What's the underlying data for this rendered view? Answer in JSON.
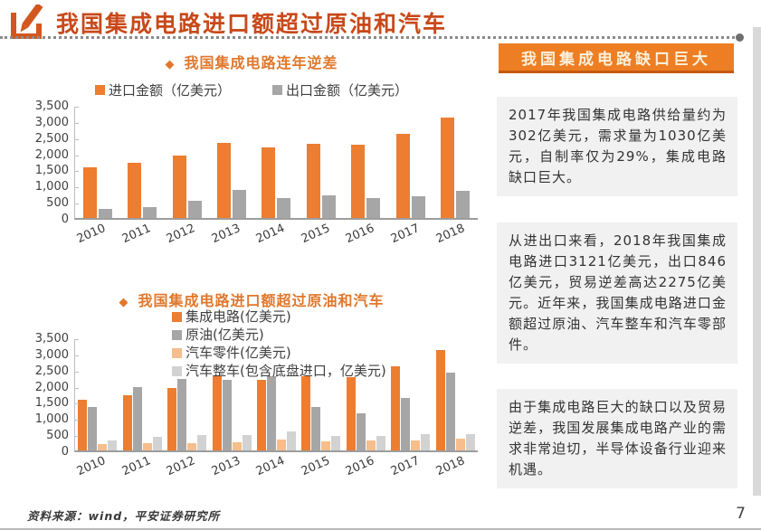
{
  "page": {
    "title": "我国集成电路进口额超过原油和汽车",
    "source_note": "资料来源：wind，平安证券研究所",
    "page_number": "7"
  },
  "icons": {
    "header_icon": "pencil-edit-icon",
    "chart_title_bullet": "◆"
  },
  "colors": {
    "title_red": "#c8491a",
    "chart_title_orange": "#e0782c",
    "panel_header_bg": "#ee7e23",
    "panel_header_text": "#fcf0dc",
    "panel_para_bg": "#f1f1f1",
    "bar_orange": "#ed7d31",
    "bar_gray": "#a6a6a6",
    "bar_peach": "#f5be8c",
    "bar_lightgray": "#d2d2d2"
  },
  "right_panel": {
    "header": "我国集成电路缺口巨大",
    "paragraphs": [
      "2017年我国集成电路供给量约为302亿美元，需求量为1030亿美元，自制率仅为29%，集成电路缺口巨大。",
      "从进出口来看，2018年我国集成电路进口3121亿美元，出口846亿美元，贸易逆差高达2275亿美元。近年来，我国集成电路进口金额超过原油、汽车整车和汽车零部件。",
      "由于集成电路巨大的缺口以及贸易逆差，我国发展集成电路产业的需求非常迫切，半导体设备行业迎来机遇。"
    ]
  },
  "chart_data": [
    {
      "type": "bar",
      "title": "我国集成电路连年逆差",
      "categories": [
        "2010",
        "2011",
        "2012",
        "2013",
        "2014",
        "2015",
        "2016",
        "2017",
        "2018"
      ],
      "series": [
        {
          "name": "进口金额（亿美元）",
          "color": "#ed7d31",
          "values": [
            1570,
            1702,
            1921,
            2313,
            2176,
            2307,
            2271,
            2601,
            3121
          ]
        },
        {
          "name": "出口金额（亿美元）",
          "color": "#a6a6a6",
          "values": [
            292,
            326,
            534,
            877,
            609,
            690,
            610,
            669,
            846
          ]
        }
      ],
      "xlabel": "",
      "ylabel": "",
      "ylim": [
        0,
        3500
      ],
      "ytick_step": 500,
      "grid": false,
      "legend_position": "top-center"
    },
    {
      "type": "bar",
      "title": "我国集成电路进口额超过原油和汽车",
      "categories": [
        "2010",
        "2011",
        "2012",
        "2013",
        "2014",
        "2015",
        "2016",
        "2017",
        "2018"
      ],
      "series": [
        {
          "name": "集成电路(亿美元)",
          "color": "#ed7d31",
          "values": [
            1570,
            1702,
            1921,
            2313,
            2176,
            2307,
            2271,
            2601,
            3121
          ]
        },
        {
          "name": "原油(亿美元)",
          "color": "#a6a6a6",
          "values": [
            1352,
            1967,
            2205,
            2196,
            2283,
            1343,
            1150,
            1623,
            2403
          ]
        },
        {
          "name": "汽车零件(亿美元)",
          "color": "#f5be8c",
          "values": [
            190,
            215,
            220,
            250,
            330,
            270,
            300,
            320,
            350
          ]
        },
        {
          "name": "汽车整车(包含底盘进口，亿美元)",
          "color": "#d2d2d2",
          "values": [
            306,
            430,
            470,
            480,
            600,
            450,
            450,
            510,
            510
          ]
        }
      ],
      "xlabel": "",
      "ylabel": "",
      "ylim": [
        0,
        3500
      ],
      "ytick_step": 500,
      "grid": false,
      "legend_position": "top-left-overlay"
    }
  ]
}
